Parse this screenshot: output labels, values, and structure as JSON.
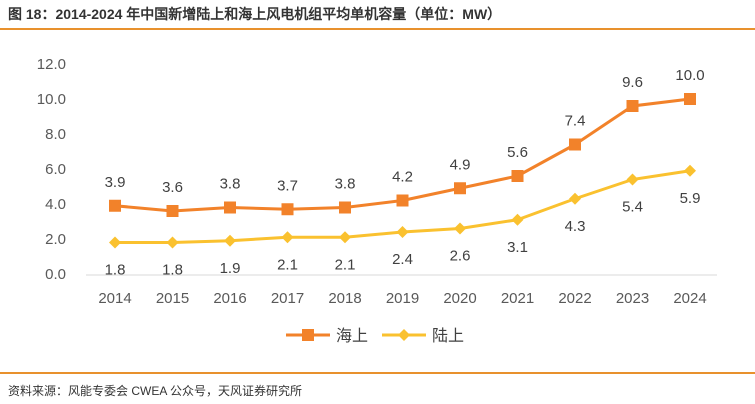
{
  "title": "图 18：2014-2024 年中国新增陆上和海上风电机组平均单机容量（单位：MW）",
  "source": "资料来源：风能专委会 CWEA 公众号，天风证券研究所",
  "chart_data": {
    "type": "line",
    "x": [
      "2014",
      "2015",
      "2016",
      "2017",
      "2018",
      "2019",
      "2020",
      "2021",
      "2022",
      "2023",
      "2024"
    ],
    "y_ticks": [
      "0.0",
      "2.0",
      "4.0",
      "6.0",
      "8.0",
      "10.0",
      "12.0"
    ],
    "ylim": [
      0,
      12
    ],
    "grid": false,
    "legend_position": "bottom-center",
    "series": [
      {
        "name": "海上",
        "color": "#f2822a",
        "marker": "square",
        "values": [
          3.9,
          3.6,
          3.8,
          3.7,
          3.8,
          4.2,
          4.9,
          5.6,
          7.4,
          9.6,
          10.0
        ],
        "labels": [
          "3.9",
          "3.6",
          "3.8",
          "3.7",
          "3.8",
          "4.2",
          "4.9",
          "5.6",
          "7.4",
          "9.6",
          "10.0"
        ]
      },
      {
        "name": "陆上",
        "color": "#fac12f",
        "marker": "diamond",
        "values": [
          1.8,
          1.8,
          1.9,
          2.1,
          2.1,
          2.4,
          2.6,
          3.1,
          4.3,
          5.4,
          5.9
        ],
        "labels": [
          "1.8",
          "1.8",
          "1.9",
          "2.1",
          "2.1",
          "2.4",
          "2.6",
          "3.1",
          "4.3",
          "5.4",
          "5.9"
        ]
      }
    ]
  }
}
